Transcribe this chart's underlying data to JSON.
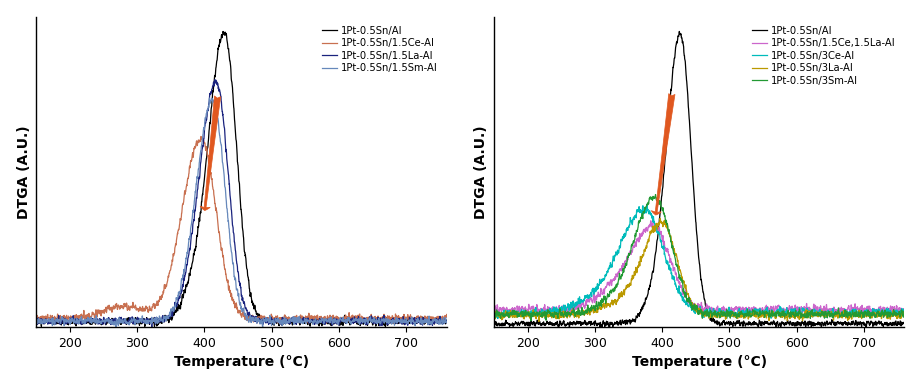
{
  "left_panel": {
    "xlabel": "Temperature (°C)",
    "ylabel": "DTGA (A.U.)",
    "xlim": [
      150,
      760
    ],
    "legend": [
      {
        "label": "1Pt-0.5Sn/Al",
        "color": "#000000"
      },
      {
        "label": "1Pt-0.5Sn/1.5Ce-Al",
        "color": "#c87050"
      },
      {
        "label": "1Pt-0.5Sn/1.5La-Al",
        "color": "#1a237e"
      },
      {
        "label": "1Pt-0.5Sn/1.5Sm-Al",
        "color": "#6688bb"
      }
    ]
  },
  "right_panel": {
    "xlabel": "Temperature (°C)",
    "ylabel": "DTGA (A.U.)",
    "xlim": [
      150,
      760
    ],
    "legend": [
      {
        "label": "1Pt-0.5Sn/Al",
        "color": "#000000"
      },
      {
        "label": "1Pt-0.5Sn/1.5Ce,1.5La-Al",
        "color": "#cc66cc"
      },
      {
        "label": "1Pt-0.5Sn/3Ce-Al",
        "color": "#00bbbb"
      },
      {
        "label": "1Pt-0.5Sn/3La-Al",
        "color": "#bb9900"
      },
      {
        "label": "1Pt-0.5Sn/3Sm-Al",
        "color": "#229933"
      }
    ]
  },
  "background_color": "#ffffff",
  "arrow_color": "#e05820"
}
